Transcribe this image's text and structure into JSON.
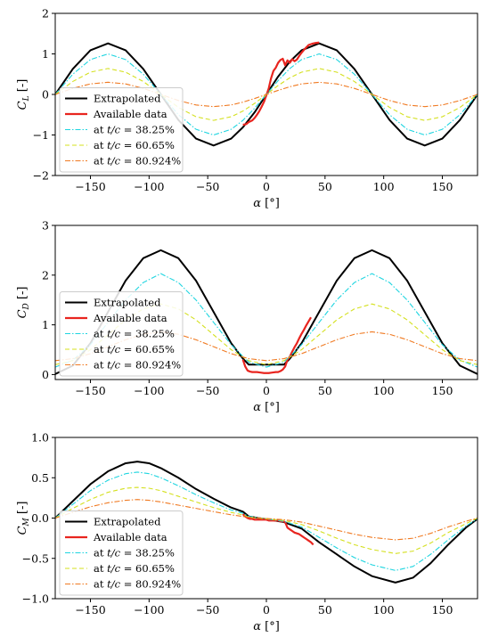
{
  "chart_data": [
    {
      "type": "line",
      "ylabel": "C_L [-]",
      "xlabel": "α [°]",
      "xlim": [
        -180,
        180
      ],
      "ylim": [
        -2,
        2
      ],
      "xticks": [
        -150,
        -100,
        -50,
        0,
        50,
        100,
        150
      ],
      "yticks": [
        -2,
        -1,
        0,
        1,
        2
      ],
      "legend_position": "lower-left",
      "series": [
        {
          "name": "Extrapolated",
          "color": "#000000",
          "style": "solid",
          "x": [
            -180,
            -165,
            -150,
            -135,
            -120,
            -105,
            -90,
            -75,
            -60,
            -45,
            -30,
            -20,
            -10,
            0,
            10,
            20,
            30,
            45,
            60,
            75,
            90,
            105,
            120,
            135,
            150,
            165,
            180
          ],
          "y": [
            0,
            0.63,
            1.09,
            1.26,
            1.09,
            0.63,
            0,
            -0.63,
            -1.09,
            -1.26,
            -1.09,
            -0.81,
            -0.44,
            0,
            0.44,
            0.81,
            1.09,
            1.26,
            1.09,
            0.63,
            0,
            -0.63,
            -1.09,
            -1.26,
            -1.09,
            -0.63,
            0
          ]
        },
        {
          "name": "Available data",
          "color": "#e8251f",
          "style": "solid",
          "x": [
            -20,
            -17,
            -15,
            -12,
            -10,
            -8,
            -6,
            -4,
            -2,
            0,
            2,
            4,
            6,
            8,
            10,
            12,
            14,
            16,
            18,
            20,
            22,
            24,
            26,
            28,
            30,
            33,
            36,
            39,
            42,
            45
          ],
          "y": [
            -0.75,
            -0.73,
            -0.68,
            -0.64,
            -0.58,
            -0.5,
            -0.41,
            -0.3,
            -0.18,
            -0.02,
            0.15,
            0.4,
            0.58,
            0.66,
            0.78,
            0.85,
            0.88,
            0.72,
            0.84,
            0.78,
            0.87,
            0.82,
            0.86,
            0.95,
            1.03,
            1.13,
            1.22,
            1.25,
            1.27,
            1.28
          ]
        },
        {
          "name": "at t/c = 38.25%",
          "color": "#1ed5e0",
          "style": "dashdot",
          "x": [
            -180,
            -165,
            -150,
            -135,
            -120,
            -105,
            -90,
            -75,
            -60,
            -45,
            -30,
            -20,
            -10,
            0,
            10,
            20,
            30,
            45,
            60,
            75,
            90,
            105,
            120,
            135,
            150,
            165,
            180
          ],
          "y": [
            0,
            0.5,
            0.86,
            1.0,
            0.86,
            0.5,
            0,
            -0.5,
            -0.86,
            -1.0,
            -0.86,
            -0.64,
            -0.34,
            0,
            0.34,
            0.64,
            0.86,
            1.0,
            0.86,
            0.5,
            0,
            -0.5,
            -0.86,
            -1.0,
            -0.86,
            -0.5,
            0
          ]
        },
        {
          "name": "at t/c = 60.65%",
          "color": "#d4e01e",
          "style": "dashed",
          "x": [
            -180,
            -165,
            -150,
            -135,
            -120,
            -105,
            -90,
            -75,
            -60,
            -45,
            -30,
            -20,
            -10,
            0,
            10,
            20,
            30,
            45,
            60,
            75,
            90,
            105,
            120,
            135,
            150,
            165,
            180
          ],
          "y": [
            0,
            0.32,
            0.55,
            0.64,
            0.55,
            0.32,
            0,
            -0.32,
            -0.55,
            -0.64,
            -0.55,
            -0.41,
            -0.22,
            0,
            0.22,
            0.41,
            0.55,
            0.64,
            0.55,
            0.32,
            0,
            -0.32,
            -0.55,
            -0.64,
            -0.55,
            -0.32,
            0
          ]
        },
        {
          "name": "at t/c = 80.924%",
          "color": "#f07a22",
          "style": "dashdot",
          "x": [
            -180,
            -165,
            -150,
            -135,
            -120,
            -105,
            -90,
            -75,
            -60,
            -45,
            -30,
            -20,
            -10,
            0,
            10,
            20,
            30,
            45,
            60,
            75,
            90,
            105,
            120,
            135,
            150,
            165,
            180
          ],
          "y": [
            0,
            0.15,
            0.26,
            0.3,
            0.26,
            0.15,
            0,
            -0.15,
            -0.26,
            -0.3,
            -0.26,
            -0.19,
            -0.1,
            0,
            0.1,
            0.19,
            0.26,
            0.3,
            0.26,
            0.15,
            0,
            -0.15,
            -0.26,
            -0.3,
            -0.26,
            -0.15,
            0
          ]
        }
      ]
    },
    {
      "type": "line",
      "ylabel": "C_D [-]",
      "xlabel": "α [°]",
      "xlim": [
        -180,
        180
      ],
      "ylim": [
        -0.1,
        3
      ],
      "xticks": [
        -150,
        -100,
        -50,
        0,
        50,
        100,
        150
      ],
      "yticks": [
        0,
        1,
        2,
        3
      ],
      "legend_position": "lower-left",
      "series": [
        {
          "name": "Extrapolated",
          "color": "#000000",
          "style": "solid",
          "x": [
            -180,
            -165,
            -150,
            -135,
            -120,
            -105,
            -90,
            -75,
            -60,
            -45,
            -30,
            -20,
            -15,
            15,
            20,
            30,
            45,
            60,
            75,
            90,
            105,
            120,
            135,
            150,
            165,
            180
          ],
          "y": [
            0.01,
            0.18,
            0.63,
            1.26,
            1.89,
            2.34,
            2.5,
            2.34,
            1.89,
            1.26,
            0.63,
            0.32,
            0.2,
            0.2,
            0.32,
            0.63,
            1.26,
            1.89,
            2.34,
            2.5,
            2.34,
            1.89,
            1.26,
            0.63,
            0.18,
            0.01
          ]
        },
        {
          "name": "Available data",
          "color": "#e8251f",
          "style": "solid",
          "x": [
            -20,
            -18,
            -16,
            -14,
            -12,
            -10,
            -8,
            -5,
            -2,
            0,
            2,
            5,
            8,
            10,
            12,
            14,
            16,
            18,
            20,
            22,
            24,
            26,
            28,
            30,
            32,
            34,
            36,
            38
          ],
          "y": [
            0.3,
            0.16,
            0.08,
            0.06,
            0.05,
            0.05,
            0.05,
            0.04,
            0.03,
            0.03,
            0.03,
            0.04,
            0.05,
            0.05,
            0.07,
            0.1,
            0.16,
            0.3,
            0.36,
            0.46,
            0.55,
            0.63,
            0.73,
            0.82,
            0.9,
            0.99,
            1.07,
            1.15
          ]
        },
        {
          "name": "at t/c = 38.25%",
          "color": "#1ed5e0",
          "style": "dashdot",
          "x": [
            -180,
            -165,
            -150,
            -135,
            -120,
            -105,
            -90,
            -75,
            -60,
            -45,
            -30,
            -15,
            0,
            15,
            30,
            45,
            60,
            75,
            90,
            105,
            120,
            135,
            150,
            165,
            180
          ],
          "y": [
            0.15,
            0.29,
            0.6,
            1.05,
            1.5,
            1.85,
            2.03,
            1.85,
            1.5,
            1.05,
            0.6,
            0.25,
            0.15,
            0.25,
            0.6,
            1.05,
            1.5,
            1.85,
            2.03,
            1.85,
            1.5,
            1.05,
            0.6,
            0.29,
            0.15
          ]
        },
        {
          "name": "at t/c = 60.65%",
          "color": "#d4e01e",
          "style": "dashed",
          "x": [
            -180,
            -165,
            -150,
            -135,
            -120,
            -105,
            -90,
            -75,
            -60,
            -45,
            -30,
            -15,
            0,
            15,
            30,
            45,
            60,
            75,
            90,
            105,
            120,
            135,
            150,
            165,
            180
          ],
          "y": [
            0.2,
            0.28,
            0.5,
            0.8,
            1.1,
            1.32,
            1.42,
            1.32,
            1.1,
            0.8,
            0.5,
            0.28,
            0.2,
            0.28,
            0.5,
            0.8,
            1.1,
            1.32,
            1.42,
            1.32,
            1.1,
            0.8,
            0.5,
            0.28,
            0.2
          ]
        },
        {
          "name": "at t/c = 80.924%",
          "color": "#f07a22",
          "style": "dashdot",
          "x": [
            -180,
            -165,
            -150,
            -135,
            -120,
            -105,
            -90,
            -75,
            -60,
            -45,
            -30,
            -15,
            0,
            15,
            30,
            45,
            60,
            75,
            90,
            105,
            120,
            135,
            150,
            165,
            180
          ],
          "y": [
            0.28,
            0.32,
            0.42,
            0.56,
            0.7,
            0.81,
            0.86,
            0.81,
            0.7,
            0.56,
            0.42,
            0.32,
            0.28,
            0.32,
            0.42,
            0.56,
            0.7,
            0.81,
            0.86,
            0.81,
            0.7,
            0.56,
            0.42,
            0.32,
            0.28
          ]
        }
      ]
    },
    {
      "type": "line",
      "ylabel": "C_M [-]",
      "xlabel": "α [°]",
      "xlim": [
        -180,
        180
      ],
      "ylim": [
        -1.0,
        1.0
      ],
      "xticks": [
        -150,
        -100,
        -50,
        0,
        50,
        100,
        150
      ],
      "yticks": [
        -1.0,
        -0.5,
        0.0,
        0.5,
        1.0
      ],
      "legend_position": "lower-left",
      "series": [
        {
          "name": "Extrapolated",
          "color": "#000000",
          "style": "solid",
          "x": [
            -180,
            -165,
            -150,
            -135,
            -120,
            -110,
            -100,
            -90,
            -75,
            -60,
            -45,
            -30,
            -20,
            -15,
            15,
            30,
            45,
            60,
            75,
            90,
            110,
            125,
            140,
            155,
            170,
            180
          ],
          "y": [
            0,
            0.21,
            0.42,
            0.58,
            0.68,
            0.7,
            0.68,
            0.62,
            0.5,
            0.36,
            0.24,
            0.13,
            0.08,
            0.02,
            -0.05,
            -0.13,
            -0.3,
            -0.45,
            -0.6,
            -0.72,
            -0.8,
            -0.74,
            -0.56,
            -0.33,
            -0.12,
            -0.01
          ]
        },
        {
          "name": "Available data",
          "color": "#e8251f",
          "style": "solid",
          "x": [
            -20,
            -18,
            -16,
            -14,
            -12,
            -10,
            -8,
            -6,
            -4,
            -2,
            0,
            2,
            4,
            6,
            8,
            10,
            12,
            14,
            16,
            18,
            20,
            22,
            24,
            26,
            28,
            30,
            32,
            34,
            36,
            38,
            40
          ],
          "y": [
            0.05,
            0.02,
            0.0,
            -0.01,
            -0.01,
            -0.02,
            -0.02,
            -0.02,
            -0.02,
            -0.02,
            -0.02,
            -0.03,
            -0.03,
            -0.03,
            -0.03,
            -0.03,
            -0.04,
            -0.04,
            -0.05,
            -0.12,
            -0.14,
            -0.16,
            -0.18,
            -0.19,
            -0.2,
            -0.22,
            -0.24,
            -0.26,
            -0.28,
            -0.3,
            -0.33
          ]
        },
        {
          "name": "at t/c = 38.25%",
          "color": "#1ed5e0",
          "style": "dashdot",
          "x": [
            -180,
            -165,
            -150,
            -135,
            -120,
            -110,
            -100,
            -90,
            -75,
            -60,
            -45,
            -30,
            -20,
            -15,
            15,
            30,
            45,
            60,
            75,
            90,
            110,
            125,
            140,
            155,
            170,
            180
          ],
          "y": [
            0,
            0.17,
            0.34,
            0.47,
            0.55,
            0.57,
            0.55,
            0.5,
            0.4,
            0.29,
            0.19,
            0.1,
            0.06,
            0.02,
            -0.04,
            -0.11,
            -0.24,
            -0.37,
            -0.49,
            -0.58,
            -0.65,
            -0.6,
            -0.45,
            -0.27,
            -0.1,
            -0.01
          ]
        },
        {
          "name": "at t/c = 60.65%",
          "color": "#d4e01e",
          "style": "dashed",
          "x": [
            -180,
            -165,
            -150,
            -135,
            -120,
            -110,
            -100,
            -90,
            -75,
            -60,
            -45,
            -30,
            -20,
            -15,
            15,
            30,
            45,
            60,
            75,
            90,
            110,
            125,
            140,
            155,
            170,
            180
          ],
          "y": [
            0,
            0.12,
            0.23,
            0.32,
            0.37,
            0.38,
            0.37,
            0.34,
            0.27,
            0.2,
            0.13,
            0.07,
            0.04,
            0.01,
            -0.03,
            -0.08,
            -0.16,
            -0.25,
            -0.33,
            -0.39,
            -0.44,
            -0.41,
            -0.31,
            -0.18,
            -0.07,
            0
          ]
        },
        {
          "name": "at t/c = 80.924%",
          "color": "#f07a22",
          "style": "dashdot",
          "x": [
            -180,
            -165,
            -150,
            -135,
            -120,
            -110,
            -100,
            -90,
            -75,
            -60,
            -45,
            -30,
            -20,
            -15,
            15,
            30,
            45,
            60,
            75,
            90,
            110,
            125,
            140,
            155,
            170,
            180
          ],
          "y": [
            0,
            0.07,
            0.14,
            0.19,
            0.22,
            0.23,
            0.22,
            0.2,
            0.16,
            0.12,
            0.08,
            0.04,
            0.02,
            0.01,
            -0.02,
            -0.05,
            -0.1,
            -0.15,
            -0.2,
            -0.24,
            -0.27,
            -0.25,
            -0.19,
            -0.11,
            -0.04,
            0
          ]
        }
      ]
    }
  ]
}
